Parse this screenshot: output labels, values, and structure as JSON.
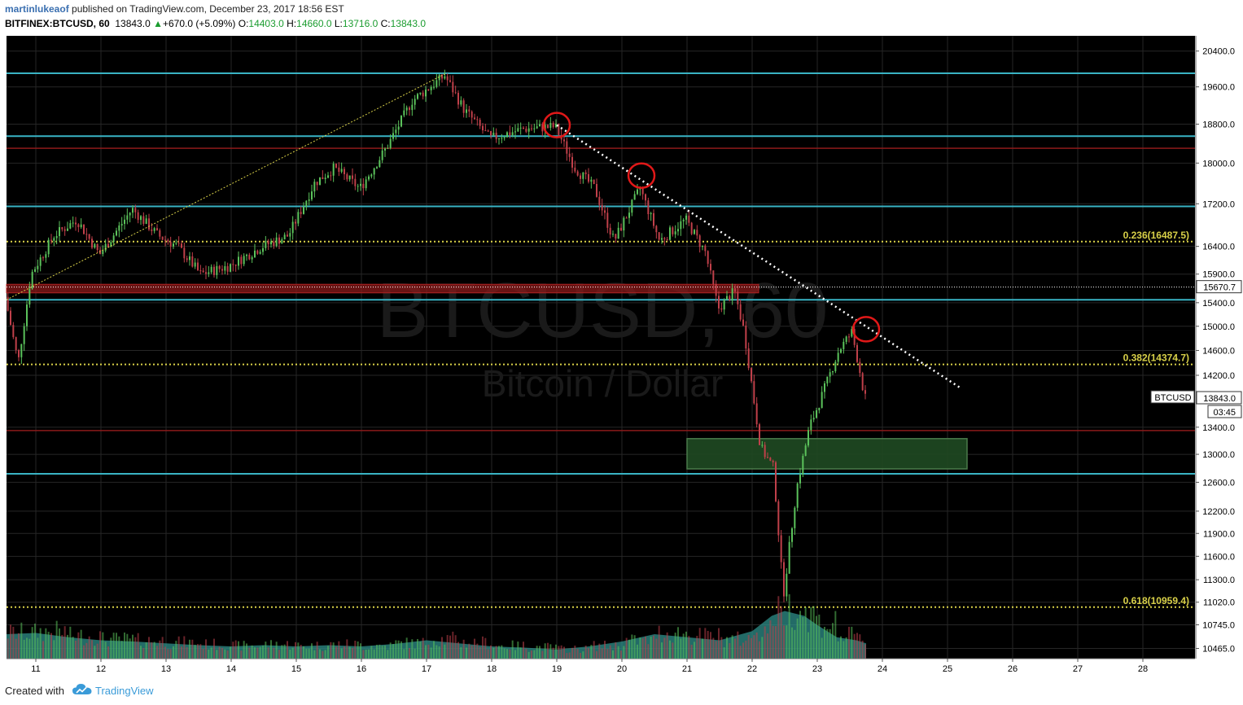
{
  "header": {
    "author": "martinlukeaof",
    "published_text": " published on TradingView.com, December 23, 2017 18:56 EST",
    "symbol": "BITFINEX:BTCUSD, 60",
    "last": "13843.0",
    "change_arrow": "▲",
    "change": "+670.0 (+5.09%)",
    "open_label": "O:",
    "open": "14403.0",
    "high_label": "H:",
    "high": "14660.0",
    "low_label": "L:",
    "low": "13716.0",
    "close_label": "C:",
    "close": "13843.0"
  },
  "footer": {
    "created_with": "Created with",
    "brand": "TradingView"
  },
  "colors": {
    "background": "#000000",
    "bull": "#5bc25b",
    "bear": "#c0404a",
    "cyan_line": "#39b3c4",
    "red_line": "#8b1a1a",
    "red_zone": "#8b1a1a",
    "fib_line": "#d8d048",
    "green_zone": "#1f4a22",
    "volume_area": "#2f8f8a",
    "circle": "#e01818",
    "axis_text": "#000000"
  },
  "chart_data": {
    "type": "candlestick",
    "symbol": "BTCUSD",
    "watermark_title": "BTCUSD, 60",
    "watermark_subtitle": "Bitcoin / Dollar",
    "interval": "60",
    "y_scale": "log",
    "ylim": [
      10300,
      20600
    ],
    "xlim": [
      10.55,
      28.8
    ],
    "y_ticks": [
      20400,
      19600,
      18800,
      18000,
      17200,
      16400,
      15900,
      15400,
      15000,
      14600,
      14200,
      13400,
      13000,
      12600,
      12200,
      11900,
      11600,
      11300,
      11020,
      10745,
      10465
    ],
    "y_tick_labels": [
      "20400.0",
      "19600.0",
      "18800.0",
      "18000.0",
      "17200.0",
      "16400.0",
      "15900.0",
      "15400.0",
      "15000.0",
      "14600.0",
      "14200.0",
      "13400.0",
      "13000.0",
      "12600.0",
      "12200.0",
      "11900.0",
      "11600.0",
      "11300.0",
      "11020.0",
      "10745.0",
      "10465.0"
    ],
    "x_ticks": [
      11,
      12,
      13,
      14,
      15,
      16,
      17,
      18,
      19,
      20,
      21,
      22,
      23,
      24,
      25,
      26,
      27,
      28
    ],
    "x_tick_labels": [
      "11",
      "12",
      "13",
      "14",
      "15",
      "16",
      "17",
      "18",
      "19",
      "20",
      "21",
      "22",
      "23",
      "24",
      "25",
      "26",
      "27",
      "28"
    ],
    "price_path": [
      [
        10.55,
        15500
      ],
      [
        10.75,
        14400
      ],
      [
        10.95,
        15900
      ],
      [
        11.3,
        16600
      ],
      [
        11.65,
        16900
      ],
      [
        12.0,
        16250
      ],
      [
        12.5,
        17100
      ],
      [
        12.9,
        16600
      ],
      [
        13.2,
        16400
      ],
      [
        13.55,
        15900
      ],
      [
        14.0,
        16050
      ],
      [
        14.5,
        16400
      ],
      [
        14.9,
        16600
      ],
      [
        15.3,
        17600
      ],
      [
        15.6,
        17900
      ],
      [
        16.0,
        17500
      ],
      [
        16.4,
        18300
      ],
      [
        16.8,
        19300
      ],
      [
        17.3,
        19850
      ],
      [
        17.6,
        19100
      ],
      [
        18.0,
        18500
      ],
      [
        18.5,
        18700
      ],
      [
        19.0,
        18750
      ],
      [
        19.3,
        17900
      ],
      [
        19.6,
        17500
      ],
      [
        19.9,
        16500
      ],
      [
        20.3,
        17500
      ],
      [
        20.6,
        16500
      ],
      [
        21.0,
        16900
      ],
      [
        21.3,
        16300
      ],
      [
        21.5,
        15300
      ],
      [
        21.75,
        15600
      ],
      [
        21.9,
        14900
      ],
      [
        22.15,
        13100
      ],
      [
        22.35,
        12800
      ],
      [
        22.5,
        11100
      ],
      [
        22.7,
        12500
      ],
      [
        22.9,
        13400
      ],
      [
        23.1,
        13900
      ],
      [
        23.35,
        14600
      ],
      [
        23.55,
        14900
      ],
      [
        23.65,
        14403
      ],
      [
        23.75,
        13843
      ]
    ],
    "candles_per_day": 24,
    "price_labels": [
      {
        "label": "15670.7",
        "value": 15670.7
      },
      {
        "label": "13843.0",
        "value": 13843.0
      },
      {
        "label": "03:45",
        "value": 13843.0
      }
    ],
    "symbol_tag": "BTCUSD",
    "horizontal_levels": [
      {
        "kind": "cyan",
        "value": 19900
      },
      {
        "kind": "cyan",
        "value": 18550
      },
      {
        "kind": "red",
        "value": 18300
      },
      {
        "kind": "cyan",
        "value": 17150
      },
      {
        "kind": "cyan",
        "value": 15450
      },
      {
        "kind": "red",
        "value": 13350
      },
      {
        "kind": "cyan",
        "value": 12720
      }
    ],
    "fib_levels": [
      {
        "label": "0.236(16487.5)",
        "value": 16487.5
      },
      {
        "label": "0.382(14374.7)",
        "value": 14374.7
      },
      {
        "label": "0.618(10959.4)",
        "value": 10959.4
      }
    ],
    "dotted_reference": {
      "value": 15670.7
    },
    "red_zone": {
      "x_from": 10.55,
      "x_to": 22.1,
      "y_from": 15570,
      "y_to": 15720
    },
    "green_zone": {
      "x_from": 21.0,
      "x_to": 25.3,
      "y_from": 12790,
      "y_to": 13230
    },
    "uptrend_line": [
      [
        10.55,
        15450
      ],
      [
        17.3,
        19900
      ]
    ],
    "downtrend_line": [
      [
        19.0,
        18780
      ],
      [
        25.2,
        14000
      ]
    ],
    "circles": [
      {
        "x": 19.0,
        "y": 18780
      },
      {
        "x": 20.3,
        "y": 17750
      },
      {
        "x": 23.75,
        "y": 14950
      }
    ],
    "volume_ylim": [
      0,
      100
    ],
    "volume_profile": [
      [
        10.55,
        40
      ],
      [
        11.0,
        42
      ],
      [
        11.5,
        35
      ],
      [
        12.0,
        30
      ],
      [
        12.5,
        28
      ],
      [
        13.0,
        25
      ],
      [
        13.5,
        22
      ],
      [
        14.0,
        20
      ],
      [
        14.5,
        22
      ],
      [
        15.0,
        20
      ],
      [
        15.5,
        22
      ],
      [
        16.0,
        20
      ],
      [
        16.5,
        24
      ],
      [
        17.0,
        30
      ],
      [
        17.5,
        25
      ],
      [
        18.0,
        20
      ],
      [
        18.5,
        18
      ],
      [
        19.0,
        15
      ],
      [
        19.5,
        20
      ],
      [
        20.0,
        28
      ],
      [
        20.5,
        40
      ],
      [
        21.0,
        35
      ],
      [
        21.5,
        30
      ],
      [
        22.0,
        45
      ],
      [
        22.3,
        70
      ],
      [
        22.5,
        78
      ],
      [
        22.8,
        70
      ],
      [
        23.0,
        55
      ],
      [
        23.3,
        35
      ],
      [
        23.6,
        30
      ],
      [
        23.75,
        25
      ]
    ]
  }
}
